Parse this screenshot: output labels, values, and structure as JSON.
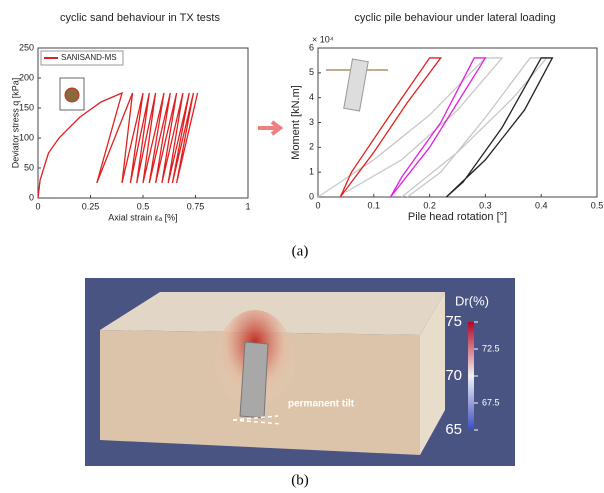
{
  "chart_data": [
    {
      "type": "line",
      "title": "cyclic sand behaviour in TX tests",
      "x_label": "Axial strain εₐ [%]",
      "y_label": "Deviator stress q [kPa]",
      "xlim": [
        0,
        1
      ],
      "xticks": [
        0,
        0.25,
        0.5,
        0.75,
        1
      ],
      "ylim": [
        0,
        250
      ],
      "yticks": [
        0,
        50,
        100,
        150,
        200,
        250
      ],
      "legend": "top-left",
      "series": [
        {
          "name": "SANISAND-MS",
          "color": "#e02020",
          "x": [
            0,
            0.01,
            0.05,
            0.1,
            0.2,
            0.3,
            0.4,
            0.28,
            0.45,
            0.4,
            0.5,
            0.44,
            0.53,
            0.47,
            0.56,
            0.5,
            0.6,
            0.53,
            0.63,
            0.56,
            0.66,
            0.59,
            0.69,
            0.62,
            0.72,
            0.64,
            0.74,
            0.66,
            0.76
          ],
          "values": [
            0,
            30,
            75,
            100,
            135,
            160,
            175,
            25,
            175,
            25,
            175,
            25,
            175,
            25,
            175,
            25,
            175,
            25,
            175,
            25,
            175,
            25,
            175,
            25,
            175,
            25,
            175,
            25,
            175
          ]
        }
      ]
    },
    {
      "type": "line",
      "title": "cyclic pile behaviour under lateral loading",
      "x_label": "Pile head rotation [°]",
      "y_label": "Moment [kN.m]",
      "y_multiplier": "× 10⁴",
      "xlim": [
        0,
        0.5
      ],
      "xticks": [
        0,
        0.1,
        0.2,
        0.3,
        0.4,
        0.5
      ],
      "ylim": [
        0,
        6
      ],
      "yticks": [
        0,
        1,
        2,
        3,
        4,
        5,
        6
      ],
      "series": [
        {
          "color": "#c8c8c8",
          "x": [
            0,
            0.1,
            0.2,
            0.3,
            0.33,
            0.25,
            0.15,
            0.05
          ],
          "values": [
            0,
            1.5,
            3.3,
            5.6,
            5.6,
            3.5,
            1.5,
            0.2
          ]
        },
        {
          "color": "#c8c8c8",
          "x": [
            0.15,
            0.25,
            0.35,
            0.41,
            0.38,
            0.3,
            0.22,
            0.16
          ],
          "values": [
            0,
            1.8,
            4,
            5.6,
            5.6,
            3.2,
            1,
            0
          ]
        },
        {
          "color": "#e02020",
          "x": [
            0.04,
            0.1,
            0.16,
            0.22,
            0.2,
            0.12,
            0.06,
            0.04
          ],
          "values": [
            0,
            1.8,
            3.8,
            5.6,
            5.6,
            3,
            1,
            0
          ]
        },
        {
          "color": "#e020e0",
          "x": [
            0.13,
            0.2,
            0.25,
            0.3,
            0.28,
            0.22,
            0.15,
            0.13
          ],
          "values": [
            0,
            2,
            3.8,
            5.6,
            5.6,
            3,
            0.8,
            0
          ]
        },
        {
          "color": "#222222",
          "x": [
            0.23,
            0.3,
            0.37,
            0.42,
            0.4,
            0.33,
            0.26,
            0.23
          ],
          "values": [
            0,
            1.5,
            3.5,
            5.6,
            5.6,
            2.8,
            0.6,
            0
          ]
        }
      ]
    }
  ],
  "captions": [
    "(a)",
    "(b)"
  ],
  "render": {
    "annotation": "permanent tilt",
    "colorbar": {
      "title": "Dr(%)",
      "lim": [
        65,
        75
      ],
      "ticks": [
        75,
        72.5,
        70,
        67.5,
        65
      ]
    }
  }
}
